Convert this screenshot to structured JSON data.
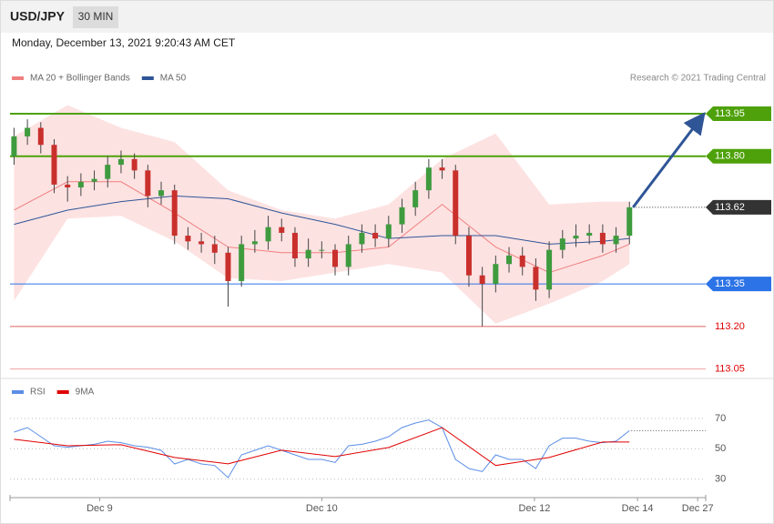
{
  "chart_data": [
    {
      "type": "candlestick",
      "title": "USD/JPY",
      "timeframe": "30 MIN",
      "subtitle": "Monday, December 13, 2021 9:20:43 AM CET",
      "credit": "Research © 2021 Trading Central",
      "x": [
        0,
        1,
        2,
        3,
        4,
        5,
        6,
        7,
        8,
        9,
        10,
        11,
        12,
        13,
        14,
        15,
        16,
        17,
        18,
        19,
        20,
        21,
        22,
        23,
        24,
        25,
        26,
        27,
        28,
        29,
        30,
        31,
        32,
        33,
        34,
        35,
        36,
        37,
        38,
        39,
        40,
        41,
        42,
        43,
        44,
        45,
        46
      ],
      "open": [
        113.8,
        113.87,
        113.9,
        113.84,
        113.7,
        113.69,
        113.71,
        113.72,
        113.77,
        113.79,
        113.75,
        113.66,
        113.68,
        113.52,
        113.5,
        113.49,
        113.46,
        113.36,
        113.49,
        113.5,
        113.55,
        113.53,
        113.44,
        113.47,
        113.47,
        113.41,
        113.49,
        113.53,
        113.51,
        113.56,
        113.62,
        113.68,
        113.76,
        113.75,
        113.52,
        113.38,
        113.35,
        113.42,
        113.45,
        113.41,
        113.33,
        113.47,
        113.51,
        113.52,
        113.53,
        113.49,
        113.52
      ],
      "high": [
        113.9,
        113.93,
        113.92,
        113.86,
        113.73,
        113.74,
        113.75,
        113.8,
        113.82,
        113.81,
        113.77,
        113.71,
        113.7,
        113.55,
        113.53,
        113.52,
        113.48,
        113.52,
        113.54,
        113.59,
        113.58,
        113.55,
        113.51,
        113.5,
        113.49,
        113.52,
        113.56,
        113.56,
        113.59,
        113.65,
        113.71,
        113.79,
        113.79,
        113.77,
        113.55,
        113.41,
        113.45,
        113.48,
        113.48,
        113.44,
        113.5,
        113.54,
        113.56,
        113.56,
        113.56,
        113.55,
        113.64
      ],
      "low": [
        113.77,
        113.84,
        113.81,
        113.67,
        113.64,
        113.66,
        113.68,
        113.69,
        113.74,
        113.72,
        113.62,
        113.63,
        113.49,
        113.47,
        113.46,
        113.42,
        113.27,
        113.34,
        113.46,
        113.47,
        113.5,
        113.41,
        113.41,
        113.44,
        113.38,
        113.38,
        113.46,
        113.48,
        113.48,
        113.53,
        113.59,
        113.65,
        113.72,
        113.49,
        113.34,
        113.2,
        113.32,
        113.39,
        113.38,
        113.29,
        113.3,
        113.44,
        113.48,
        113.49,
        113.46,
        113.46,
        113.49
      ],
      "close": [
        113.87,
        113.9,
        113.84,
        113.7,
        113.69,
        113.71,
        113.72,
        113.77,
        113.79,
        113.75,
        113.66,
        113.68,
        113.52,
        113.5,
        113.49,
        113.46,
        113.36,
        113.49,
        113.5,
        113.55,
        113.53,
        113.44,
        113.47,
        113.47,
        113.41,
        113.49,
        113.53,
        113.51,
        113.56,
        113.62,
        113.68,
        113.76,
        113.75,
        113.52,
        113.38,
        113.35,
        113.42,
        113.45,
        113.41,
        113.33,
        113.47,
        113.51,
        113.52,
        113.53,
        113.49,
        113.52,
        113.62
      ],
      "up_color": "#3e9b3e",
      "down_color": "#c9302c",
      "series": [
        {
          "name": "MA 20 + Bollinger Bands",
          "color": "#f08080",
          "band_color": "#fde2e2",
          "x": [
            0,
            4,
            8,
            12,
            16,
            20,
            24,
            28,
            32,
            36,
            40,
            44,
            46
          ],
          "values": [
            113.61,
            113.71,
            113.71,
            113.6,
            113.48,
            113.46,
            113.46,
            113.48,
            113.63,
            113.48,
            113.39,
            113.45,
            113.49
          ],
          "upper": [
            113.87,
            113.98,
            113.9,
            113.85,
            113.68,
            113.61,
            113.58,
            113.63,
            113.79,
            113.88,
            113.63,
            113.64,
            113.64
          ],
          "lower": [
            113.29,
            113.58,
            113.59,
            113.5,
            113.37,
            113.36,
            113.39,
            113.42,
            113.39,
            113.21,
            113.28,
            113.36,
            113.42
          ]
        },
        {
          "name": "MA 50",
          "color": "#2f5597",
          "x": [
            0,
            4,
            8,
            12,
            16,
            20,
            24,
            28,
            32,
            36,
            40,
            44,
            46
          ],
          "values": [
            113.56,
            113.61,
            113.64,
            113.66,
            113.65,
            113.6,
            113.56,
            113.51,
            113.52,
            113.52,
            113.49,
            113.5,
            113.51
          ]
        }
      ],
      "levels": {
        "values": [
          113.95,
          {
            "value": 113.8,
            "label": "113.80"
          },
          113.62,
          113.35,
          {
            "value": 113.2,
            "label": "113.20"
          },
          113.05
        ],
        "colors": [
          "#4ea10a",
          "#4ea10a",
          "#333333",
          "#2b73e6",
          "#e06060",
          "#f0a0a0"
        ],
        "tagged": [
          true,
          true,
          true,
          true,
          false,
          false
        ],
        "line_style": [
          "solid",
          "solid",
          "dotted",
          "solid",
          "solid",
          "solid"
        ]
      },
      "arrow_color": "#2f5597",
      "xlim": [
        -0.3,
        51.7
      ],
      "ylim": [
        113.02,
        114.03
      ]
    },
    {
      "type": "line",
      "series": [
        {
          "name": "RSI",
          "color": "#5b8ee6",
          "x": [
            0,
            1,
            2,
            3,
            4,
            5,
            6,
            7,
            8,
            9,
            10,
            11,
            12,
            13,
            14,
            15,
            16,
            17,
            18,
            19,
            20,
            21,
            22,
            23,
            24,
            25,
            26,
            27,
            28,
            29,
            30,
            31,
            32,
            33,
            34,
            35,
            36,
            37,
            38,
            39,
            40,
            41,
            42,
            43,
            44,
            45,
            46
          ],
          "values": [
            61,
            64,
            58,
            52,
            51,
            52,
            53,
            55,
            54,
            52,
            51,
            49,
            40,
            43,
            40,
            39,
            31,
            46,
            49,
            52,
            49,
            46,
            43,
            43,
            41,
            52,
            53,
            55,
            58,
            64,
            67,
            69,
            64,
            43,
            37,
            35,
            46,
            43,
            43,
            37,
            52,
            57,
            57,
            55,
            54,
            55,
            62
          ]
        },
        {
          "name": "9MA",
          "color": "#e00000",
          "x": [
            0,
            4,
            8,
            12,
            16,
            20,
            24,
            28,
            32,
            36,
            40,
            44,
            46
          ],
          "values": [
            56.3,
            52,
            52.7,
            44.3,
            40.1,
            49.1,
            44.9,
            50.9,
            64,
            39,
            44.3,
            54.5,
            54.5
          ]
        }
      ],
      "ylim": [
        22,
        82
      ],
      "yticks": [
        30,
        50,
        70
      ],
      "grid": true,
      "xlim": [
        -0.3,
        51.7
      ],
      "xticks": [
        {
          "value": 6.4,
          "label": "Dec 9"
        },
        {
          "value": 23,
          "label": "Dec 10"
        },
        {
          "value": 38.9,
          "label": "Dec 12"
        },
        {
          "value": 46.6,
          "label": "Dec 14"
        },
        {
          "value": 51.1,
          "label": "Dec 27"
        }
      ]
    }
  ]
}
